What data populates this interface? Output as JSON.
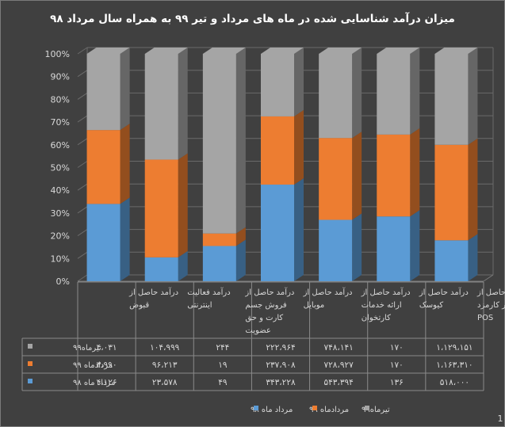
{
  "chart_data": {
    "type": "bar",
    "stacked": "percent",
    "title": "میزان درآمد شناسایی شده در ماه های مرداد و تیر ۹۹ به همراه سال مرداد ۹۸",
    "y_ticks": [
      "0%",
      "10%",
      "20%",
      "30%",
      "40%",
      "50%",
      "60%",
      "70%",
      "80%",
      "90%",
      "100%"
    ],
    "ylim": [
      0,
      100
    ],
    "categories": [
      [
        "درآمد حاصل از",
        "قبوض"
      ],
      [
        "درآمد فعالیت",
        "اینترنتی"
      ],
      [
        "درآمد حاصل از",
        "فروش جسم",
        "کارت و حق",
        "عضویت"
      ],
      [
        "درآمد حاصل از",
        "موبایل"
      ],
      [
        "درآمد حاصل از",
        "ارائه خدمات",
        "کارتخوان"
      ],
      [
        "درآمد حاصل از",
        "کیوسک"
      ],
      [
        "درآمد حاصل از",
        "سایر کارمزد",
        "POS"
      ]
    ],
    "series": [
      {
        "name": "مرداد ماه ۹۸",
        "color": "#5b9bd5",
        "percent": [
          34,
          10.5,
          15.5,
          42.5,
          27,
          28.5,
          18
        ]
      },
      {
        "name": "مردادماه ۹۹",
        "color": "#ed7d31",
        "percent": [
          32.5,
          43,
          5.5,
          30,
          36,
          36,
          42
        ]
      },
      {
        "name": "تیرماه۹۹",
        "color": "#a5a5a5",
        "percent": [
          33.5,
          46.5,
          79,
          27.5,
          37,
          35.5,
          40
        ]
      }
    ],
    "table": {
      "row_order": [
        "تیرماه۹۹",
        "مردادماه ۹۹",
        "مرداد ماه ۹۸"
      ],
      "rows": [
        {
          "label": "تیرماه۹۹",
          "color": "#a5a5a5",
          "values": [
            "۴،۰۳۱",
            "۱۰۴،۹۹۹",
            "۲۴۴",
            "۲۲۲،۹۶۴",
            "۷۴۸،۱۴۱",
            "۱۷۰",
            "۱،۱۲۹،۱۵۱"
          ]
        },
        {
          "label": "مردادماه ۹۹",
          "color": "#ed7d31",
          "values": [
            "۳،۹۹۰",
            "۹۶،۲۱۳",
            "۱۹",
            "۲۳۷،۹۰۸",
            "۷۲۸،۹۲۷",
            "۱۷۰",
            "۱،۱۶۳،۳۱۰"
          ]
        },
        {
          "label": "مرداد ماه ۹۸",
          "color": "#5b9bd5",
          "values": [
            "۴،۱۲۶",
            "۲۳،۵۷۸",
            "۴۹",
            "۳۴۳،۲۲۸",
            "۵۴۳،۳۹۴",
            "۱۳۶",
            "۵۱۸،۰۰۰"
          ]
        }
      ]
    },
    "legend": {
      "position": "bottom",
      "order": [
        "مرداد ماه ۹۸",
        "مردادماه ۹۹",
        "تیرماه۹۹"
      ]
    },
    "grid": true
  },
  "corner_mark": "1"
}
